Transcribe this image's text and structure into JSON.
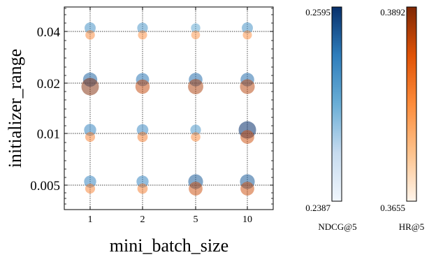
{
  "chart_data": {
    "type": "scatter",
    "xlabel": "mini_batch_size",
    "ylabel": "initializer_range",
    "x_categories": [
      "1",
      "2",
      "5",
      "10"
    ],
    "y_categories": [
      "0.005",
      "0.01",
      "0.02",
      "0.04"
    ],
    "grid": true,
    "series": [
      {
        "name": "NDCG@5",
        "color_scale": "Blues",
        "colorbar": {
          "label": "NDCG@5",
          "min": 0.2387,
          "max": 0.2595,
          "min_label": "0.2387",
          "max_label": "0.2595"
        },
        "points": [
          {
            "x": "1",
            "y": "0.04",
            "value": 0.248
          },
          {
            "x": "2",
            "y": "0.04",
            "value": 0.247
          },
          {
            "x": "5",
            "y": "0.04",
            "value": 0.244
          },
          {
            "x": "10",
            "y": "0.04",
            "value": 0.248
          },
          {
            "x": "1",
            "y": "0.02",
            "value": 0.254
          },
          {
            "x": "2",
            "y": "0.02",
            "value": 0.252
          },
          {
            "x": "5",
            "y": "0.02",
            "value": 0.253
          },
          {
            "x": "10",
            "y": "0.02",
            "value": 0.253
          },
          {
            "x": "1",
            "y": "0.01",
            "value": 0.25
          },
          {
            "x": "2",
            "y": "0.01",
            "value": 0.249
          },
          {
            "x": "5",
            "y": "0.01",
            "value": 0.247
          },
          {
            "x": "10",
            "y": "0.01",
            "value": 0.2595
          },
          {
            "x": "1",
            "y": "0.005",
            "value": 0.25
          },
          {
            "x": "2",
            "y": "0.005",
            "value": 0.25
          },
          {
            "x": "5",
            "y": "0.005",
            "value": 0.255
          },
          {
            "x": "10",
            "y": "0.005",
            "value": 0.255
          }
        ]
      },
      {
        "name": "HR@5",
        "color_scale": "Oranges",
        "colorbar": {
          "label": "HR@5",
          "min": 0.3655,
          "max": 0.3892,
          "min_label": "0.3655",
          "max_label": "0.3892"
        },
        "points": [
          {
            "x": "1",
            "y": "0.04",
            "value": 0.372
          },
          {
            "x": "2",
            "y": "0.04",
            "value": 0.371
          },
          {
            "x": "5",
            "y": "0.04",
            "value": 0.37
          },
          {
            "x": "10",
            "y": "0.04",
            "value": 0.371
          },
          {
            "x": "1",
            "y": "0.02",
            "value": 0.3892
          },
          {
            "x": "2",
            "y": "0.02",
            "value": 0.383
          },
          {
            "x": "5",
            "y": "0.02",
            "value": 0.385
          },
          {
            "x": "10",
            "y": "0.02",
            "value": 0.384
          },
          {
            "x": "1",
            "y": "0.01",
            "value": 0.373
          },
          {
            "x": "2",
            "y": "0.01",
            "value": 0.374
          },
          {
            "x": "5",
            "y": "0.01",
            "value": 0.372
          },
          {
            "x": "10",
            "y": "0.01",
            "value": 0.382
          },
          {
            "x": "1",
            "y": "0.005",
            "value": 0.373
          },
          {
            "x": "2",
            "y": "0.005",
            "value": 0.374
          },
          {
            "x": "5",
            "y": "0.005",
            "value": 0.382
          },
          {
            "x": "10",
            "y": "0.005",
            "value": 0.382
          }
        ]
      }
    ]
  }
}
